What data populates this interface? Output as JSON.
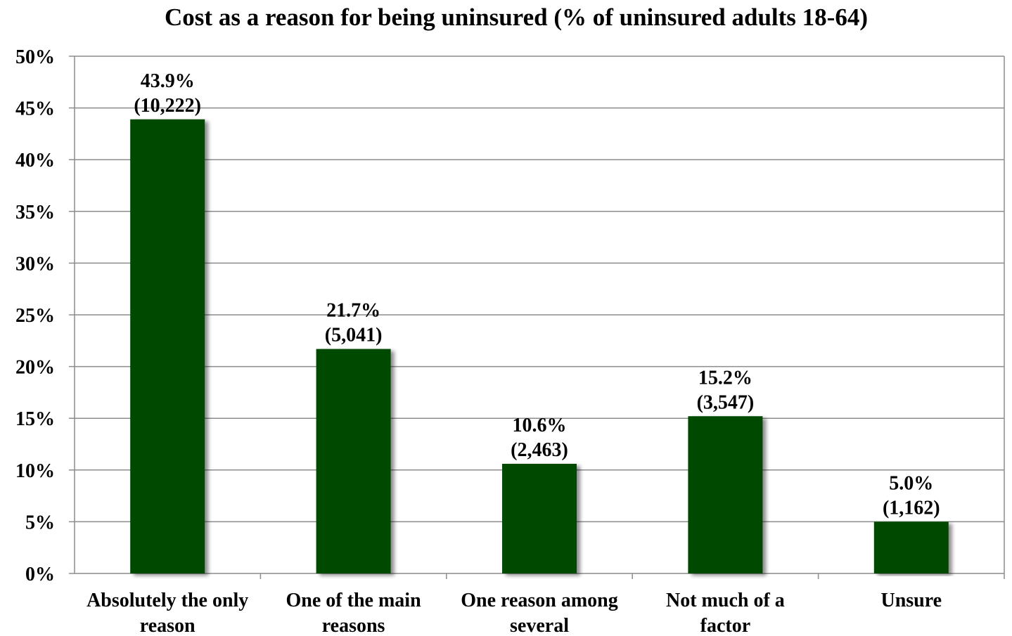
{
  "chart_data": {
    "type": "bar",
    "title": "Cost as a reason for being uninsured (% of uninsured adults 18-64)",
    "xlabel": "",
    "ylabel": "",
    "ylim": [
      0,
      50
    ],
    "yticks": [
      "0%",
      "5%",
      "10%",
      "15%",
      "20%",
      "25%",
      "30%",
      "35%",
      "40%",
      "45%",
      "50%"
    ],
    "categories": [
      [
        "Absolutely the only",
        "reason"
      ],
      [
        "One of the main",
        "reasons"
      ],
      [
        "One reason among",
        "several"
      ],
      [
        "Not much of a",
        "factor"
      ],
      [
        "Unsure"
      ]
    ],
    "values": [
      43.9,
      21.7,
      10.6,
      15.2,
      5.0
    ],
    "value_labels": [
      "43.9%",
      "21.7%",
      "10.6%",
      "15.2%",
      "5.0%"
    ],
    "count_labels": [
      "(10,222)",
      "(5,041)",
      "(2,463)",
      "(3,547)",
      "(1,162)"
    ],
    "grid": true,
    "legend": "none",
    "bar_color": "#004800",
    "grid_color": "#8c8c8c"
  }
}
